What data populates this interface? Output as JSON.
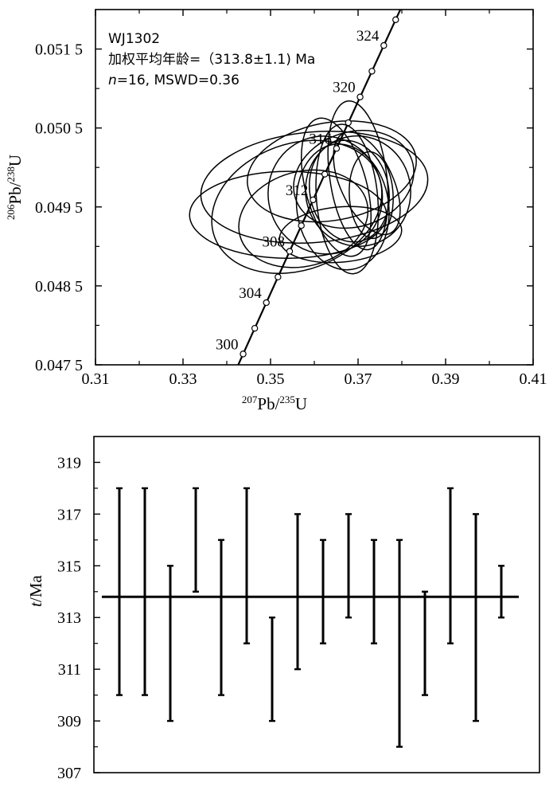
{
  "chart_data": [
    {
      "type": "scatter",
      "subtype": "concordia",
      "annotation": {
        "sample": "WJ1302",
        "age_line": "加权平均年龄=（313.8±1.1) Ma",
        "stats_prefix": "n",
        "stats_rest": "=16, MSWD=0.36"
      },
      "xlabel": {
        "sup1": "207",
        "main1": "Pb/",
        "sup2": "235",
        "main2": "U"
      },
      "ylabel": {
        "sup1": "206",
        "main1": "Pb/",
        "sup2": "238",
        "main2": "U"
      },
      "xlim": [
        0.31,
        0.41
      ],
      "ylim": [
        0.0475,
        0.052
      ],
      "xticks": [
        "0.31",
        "0.33",
        "0.35",
        "0.37",
        "0.39",
        "0.41"
      ],
      "yticks": [
        "0.047 5",
        "0.048 5",
        "0.049 5",
        "0.050 5",
        "0.051 5"
      ],
      "yticks_values": [
        0.0475,
        0.0485,
        0.0495,
        0.0505,
        0.0515
      ],
      "xticks_values": [
        0.31,
        0.33,
        0.35,
        0.37,
        0.39,
        0.41
      ],
      "concordia_ages": [
        300,
        302,
        304,
        306,
        308,
        310,
        312,
        314,
        316,
        318,
        320,
        322,
        324,
        326
      ],
      "concordia_labels": [
        "300",
        "304",
        "308",
        "312",
        "316",
        "320",
        "324"
      ],
      "ellipses": [
        {
          "x": 0.364,
          "y": 0.04995,
          "sx": 0.0195,
          "sy": 0.00062,
          "rot": 10
        },
        {
          "x": 0.36,
          "y": 0.04975,
          "sx": 0.026,
          "sy": 0.0007,
          "rot": 5
        },
        {
          "x": 0.354,
          "y": 0.0494,
          "sx": 0.0225,
          "sy": 0.00055,
          "rot": 0
        },
        {
          "x": 0.356,
          "y": 0.0495,
          "sx": 0.02,
          "sy": 0.0008,
          "rot": 20
        },
        {
          "x": 0.37,
          "y": 0.0499,
          "sx": 0.0065,
          "sy": 0.00095,
          "rot": 8
        },
        {
          "x": 0.3675,
          "y": 0.0496,
          "sx": 0.007,
          "sy": 0.00095,
          "rot": 5
        },
        {
          "x": 0.373,
          "y": 0.04965,
          "sx": 0.005,
          "sy": 0.00055,
          "rot": 3
        },
        {
          "x": 0.365,
          "y": 0.04975,
          "sx": 0.007,
          "sy": 0.0009,
          "rot": 15
        },
        {
          "x": 0.3625,
          "y": 0.04965,
          "sx": 0.013,
          "sy": 0.00075,
          "rot": 20
        },
        {
          "x": 0.368,
          "y": 0.0497,
          "sx": 0.009,
          "sy": 0.00065,
          "rot": 12
        },
        {
          "x": 0.366,
          "y": 0.04915,
          "sx": 0.014,
          "sy": 0.00035,
          "rot": 5
        },
        {
          "x": 0.372,
          "y": 0.0498,
          "sx": 0.006,
          "sy": 0.0007,
          "rot": 25
        },
        {
          "x": 0.369,
          "y": 0.04985,
          "sx": 0.014,
          "sy": 0.0006,
          "rot": 18
        },
        {
          "x": 0.37,
          "y": 0.0497,
          "sx": 0.012,
          "sy": 0.0007,
          "rot": 10
        },
        {
          "x": 0.3665,
          "y": 0.0495,
          "sx": 0.0105,
          "sy": 0.0008,
          "rot": 8
        },
        {
          "x": 0.3575,
          "y": 0.04935,
          "sx": 0.015,
          "sy": 0.0006,
          "rot": 15
        }
      ]
    },
    {
      "type": "errorbar",
      "ylabel_italic": "t",
      "ylabel_rest": "/Ma",
      "ylim": [
        307,
        320
      ],
      "yticks": [
        "307",
        "309",
        "311",
        "313",
        "315",
        "317",
        "319"
      ],
      "yticks_values": [
        307,
        309,
        311,
        313,
        315,
        317,
        319
      ],
      "mean": 313.8,
      "bars": [
        {
          "lo": 310,
          "hi": 318
        },
        {
          "lo": 310,
          "hi": 318
        },
        {
          "lo": 309,
          "hi": 315
        },
        {
          "lo": 314,
          "hi": 318
        },
        {
          "lo": 310,
          "hi": 316
        },
        {
          "lo": 312,
          "hi": 318
        },
        {
          "lo": 309,
          "hi": 313
        },
        {
          "lo": 311,
          "hi": 317
        },
        {
          "lo": 312,
          "hi": 316
        },
        {
          "lo": 313,
          "hi": 317
        },
        {
          "lo": 312,
          "hi": 316
        },
        {
          "lo": 308,
          "hi": 316
        },
        {
          "lo": 310,
          "hi": 314
        },
        {
          "lo": 312,
          "hi": 318
        },
        {
          "lo": 309,
          "hi": 317
        },
        {
          "lo": 313,
          "hi": 315
        }
      ]
    }
  ]
}
